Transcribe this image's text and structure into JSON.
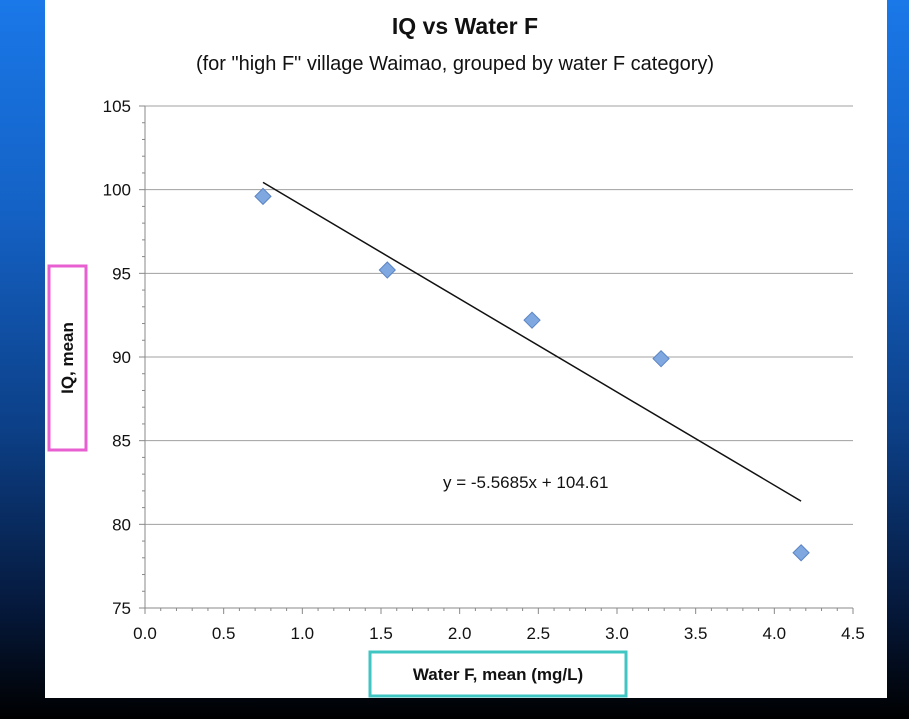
{
  "chart_data": {
    "type": "scatter",
    "title": "IQ vs Water F",
    "subtitle": "(for \"high F\" village Waimao, grouped by water F category)",
    "xlabel": "Water F, mean (mg/L)",
    "ylabel": "IQ, mean",
    "xlim": [
      0.0,
      4.5
    ],
    "ylim": [
      75,
      105
    ],
    "xticks": [
      "0.0",
      "0.5",
      "1.0",
      "1.5",
      "2.0",
      "2.5",
      "3.0",
      "3.5",
      "4.0",
      "4.5"
    ],
    "yticks": [
      "75",
      "80",
      "85",
      "90",
      "95",
      "100",
      "105"
    ],
    "grid": "horizontal",
    "legend": "none",
    "series": [
      {
        "x": [
          0.75,
          1.54,
          2.46,
          3.28,
          4.17
        ],
        "y": [
          99.6,
          95.2,
          92.2,
          89.9,
          78.3
        ],
        "color": "#7fa8e0"
      }
    ],
    "trendline": {
      "slope": -5.5685,
      "intercept": 104.61,
      "x_range": [
        0.75,
        4.17
      ],
      "equation": "y = -5.5685x + 104.61"
    },
    "axis_label_box_colors": {
      "ylabel": "#e75fd1",
      "xlabel": "#3fc6c3"
    }
  }
}
